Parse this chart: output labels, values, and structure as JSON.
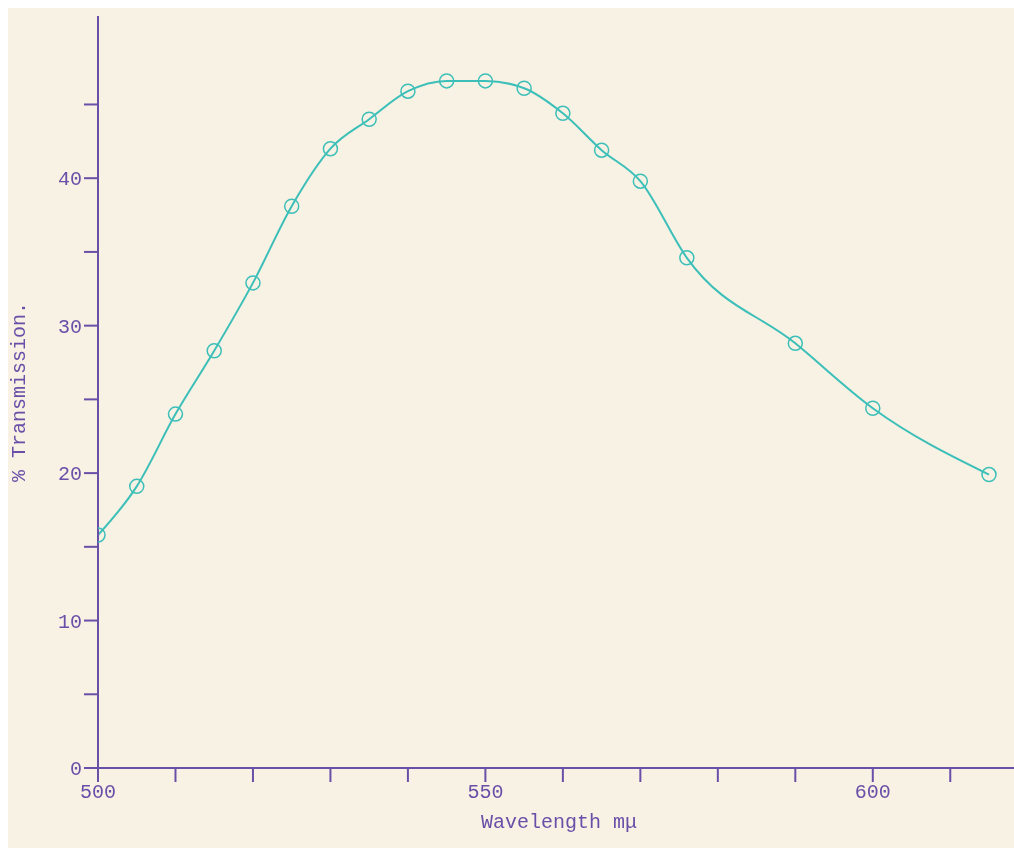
{
  "chart_data": {
    "type": "line",
    "xlabel": "Wavelength mμ",
    "ylabel": "% Transmission.",
    "x": [
      500,
      505,
      510,
      515,
      520,
      525,
      530,
      535,
      540,
      545,
      550,
      555,
      560,
      565,
      570,
      576,
      590,
      600,
      615
    ],
    "series": [
      {
        "color": "#3cbfb8",
        "values": [
          15.8,
          19.1,
          24.0,
          28.3,
          32.9,
          38.1,
          42.0,
          44.0,
          45.9,
          46.6,
          46.6,
          46.1,
          44.4,
          41.9,
          39.8,
          34.6,
          28.8,
          24.4,
          19.9
        ]
      }
    ],
    "xlim": [
      500,
      619
    ],
    "ylim": [
      0,
      51
    ],
    "xticks": [
      500,
      {
        "value": 510,
        "label": null
      },
      {
        "value": 520,
        "label": null
      },
      {
        "value": 530,
        "label": null
      },
      {
        "value": 540,
        "label": null
      },
      550,
      {
        "value": 560,
        "label": null
      },
      {
        "value": 570,
        "label": null
      },
      {
        "value": 580,
        "label": null
      },
      {
        "value": 590,
        "label": null
      },
      600,
      {
        "value": 610,
        "label": null
      }
    ],
    "yticks": [
      0,
      {
        "value": 5,
        "label": null
      },
      10,
      {
        "value": 15,
        "label": null
      },
      20,
      {
        "value": 25,
        "label": null
      },
      30,
      {
        "value": 35,
        "label": null
      },
      40,
      {
        "value": 45,
        "label": null
      }
    ],
    "marker": "circle",
    "line_style": "solid",
    "grid": false,
    "legend": false
  }
}
